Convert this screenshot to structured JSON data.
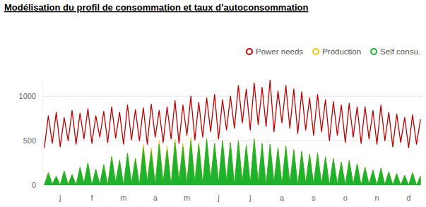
{
  "chart_data": {
    "type": "line",
    "title": "Modélisation du profil de consommation et taux d’autoconsommation",
    "categories": [
      null,
      null,
      null,
      null,
      "j",
      null,
      null,
      null,
      null,
      null,
      null,
      null,
      "f",
      null,
      null,
      null,
      null,
      null,
      null,
      null,
      "m",
      null,
      null,
      null,
      null,
      null,
      null,
      null,
      "a",
      null,
      null,
      null,
      null,
      null,
      null,
      null,
      "m",
      null,
      null,
      null,
      null,
      null,
      null,
      null,
      "j",
      null,
      null,
      null,
      null,
      null,
      null,
      null,
      "j",
      null,
      null,
      null,
      null,
      null,
      null,
      null,
      "a",
      null,
      null,
      null,
      null,
      null,
      null,
      null,
      "s",
      null,
      null,
      null,
      null,
      null,
      null,
      null,
      "o",
      null,
      null,
      null,
      null,
      null,
      null,
      null,
      "n",
      null,
      null,
      null,
      null,
      null,
      null,
      null,
      "d",
      null,
      null,
      null
    ],
    "series": [
      {
        "name": "Power needs",
        "color": "#c00000",
        "type": "line",
        "values": [
          420,
          780,
          470,
          820,
          430,
          760,
          500,
          840,
          460,
          810,
          520,
          860,
          470,
          780,
          540,
          830,
          480,
          880,
          530,
          820,
          460,
          900,
          510,
          850,
          500,
          870,
          460,
          910,
          540,
          840,
          480,
          880,
          520,
          950,
          470,
          900,
          560,
          1000,
          510,
          930,
          540,
          980,
          600,
          1020,
          520,
          960,
          620,
          1000,
          640,
          1120,
          700,
          1080,
          620,
          1150,
          680,
          1100,
          660,
          1180,
          600,
          1060,
          700,
          1120,
          640,
          1080,
          580,
          1050,
          620,
          980,
          560,
          1020,
          600,
          960,
          500,
          940,
          560,
          900,
          480,
          920,
          540,
          880,
          470,
          880,
          520,
          840,
          460,
          900,
          500,
          820,
          430,
          800,
          480,
          760,
          420,
          790,
          460,
          740
        ]
      },
      {
        "name": "Production",
        "color": "#f2c500",
        "type": "area",
        "values": [
          0,
          140,
          10,
          100,
          0,
          160,
          5,
          120,
          0,
          200,
          20,
          250,
          0,
          180,
          10,
          230,
          0,
          320,
          30,
          280,
          0,
          360,
          20,
          300,
          0,
          460,
          40,
          420,
          10,
          500,
          30,
          440,
          0,
          520,
          50,
          470,
          20,
          540,
          40,
          480,
          10,
          520,
          60,
          470,
          30,
          500,
          50,
          480,
          0,
          500,
          40,
          450,
          20,
          520,
          30,
          470,
          0,
          460,
          30,
          420,
          10,
          440,
          20,
          400,
          0,
          380,
          20,
          350,
          10,
          360,
          10,
          320,
          0,
          300,
          10,
          260,
          0,
          280,
          10,
          240,
          0,
          200,
          10,
          170,
          0,
          190,
          5,
          150,
          0,
          130,
          0,
          110,
          0,
          140,
          0,
          100
        ]
      },
      {
        "name": "Self consu.",
        "color": "#1db32e",
        "type": "area",
        "values": [
          0,
          140,
          10,
          100,
          0,
          160,
          5,
          120,
          0,
          200,
          20,
          250,
          0,
          180,
          10,
          230,
          0,
          320,
          30,
          280,
          0,
          360,
          20,
          300,
          0,
          420,
          40,
          380,
          10,
          460,
          30,
          400,
          0,
          480,
          50,
          430,
          20,
          500,
          40,
          460,
          10,
          520,
          60,
          470,
          30,
          500,
          50,
          480,
          0,
          500,
          40,
          450,
          20,
          520,
          30,
          470,
          0,
          460,
          30,
          420,
          10,
          440,
          20,
          400,
          0,
          380,
          20,
          350,
          10,
          360,
          10,
          320,
          0,
          300,
          10,
          260,
          0,
          280,
          10,
          240,
          0,
          200,
          10,
          170,
          0,
          190,
          5,
          150,
          0,
          130,
          0,
          110,
          0,
          140,
          0,
          100
        ]
      }
    ],
    "ylim": [
      0,
      1200
    ],
    "yticks": [
      0,
      500,
      1000
    ],
    "grid": true,
    "legend": "top-right"
  }
}
